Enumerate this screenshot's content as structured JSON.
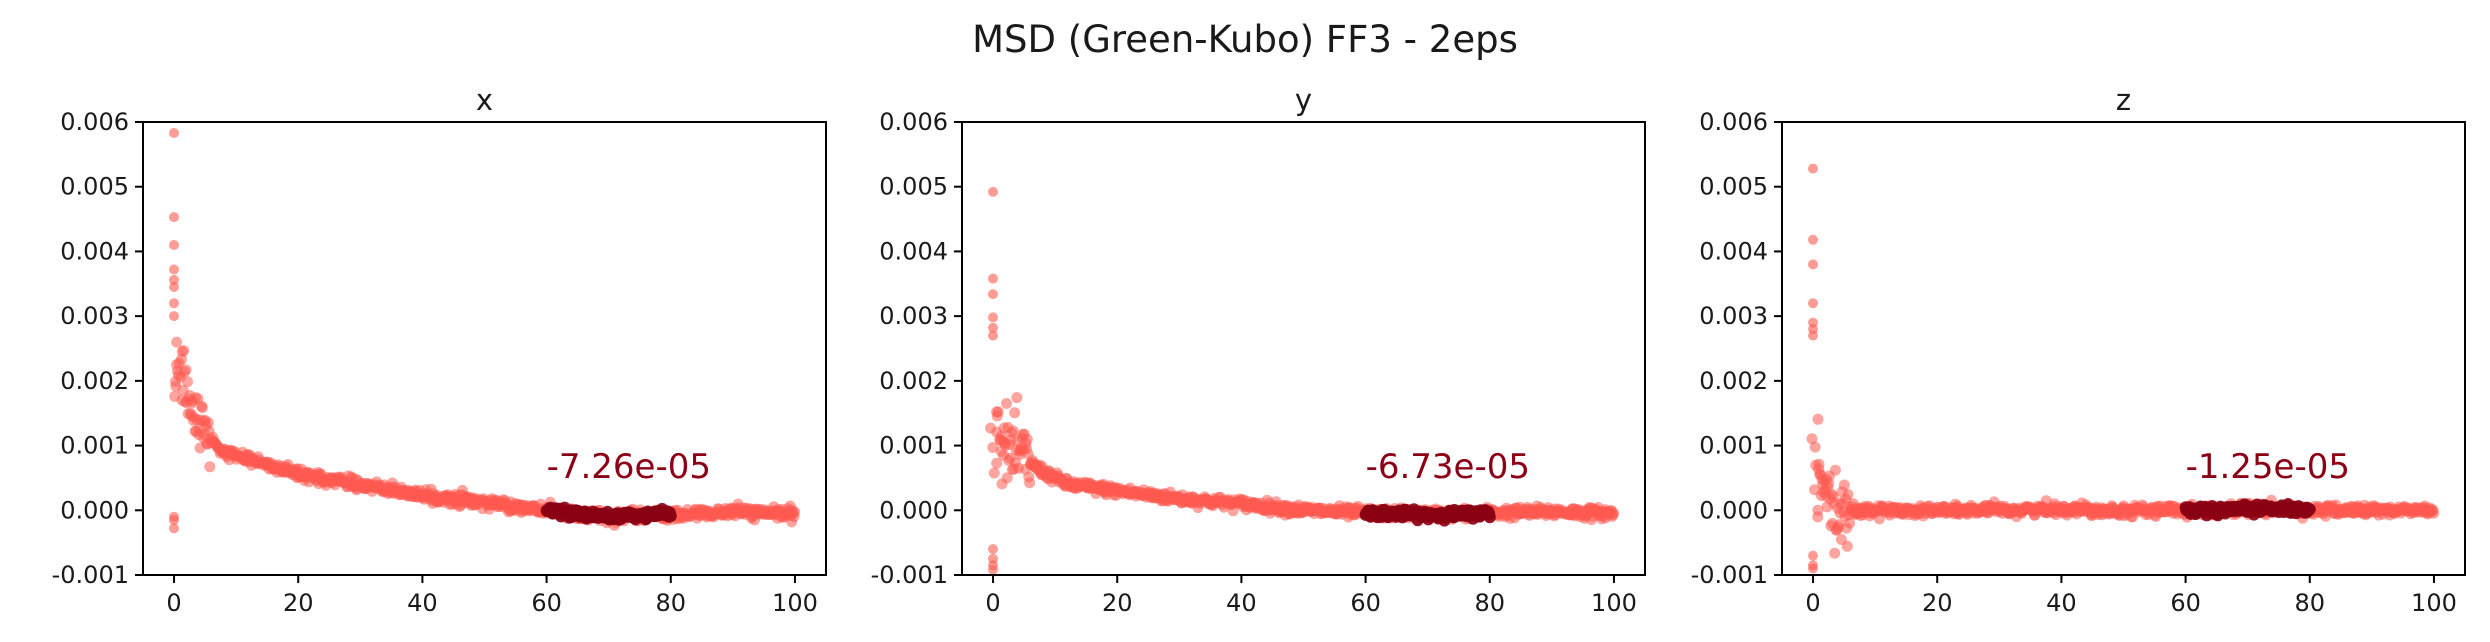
{
  "figure": {
    "title": "MSD (Green-Kubo) FF3 - 2eps"
  },
  "colors": {
    "noise": "#ff5a50",
    "fit": "#8b0014",
    "annotation": "#8b0014"
  },
  "chart_data": [
    {
      "type": "scatter",
      "title": "x",
      "xlabel": "",
      "ylabel": "",
      "xlim": [
        -5,
        105
      ],
      "ylim": [
        -0.001,
        0.006
      ],
      "xticks": [
        0,
        20,
        40,
        60,
        80,
        100
      ],
      "yticks": [
        -0.001,
        0.0,
        0.001,
        0.002,
        0.003,
        0.004,
        0.005,
        0.006
      ],
      "ytick_labels": [
        "-0.001",
        "0.000",
        "0.001",
        "0.002",
        "0.003",
        "0.004",
        "0.005",
        "0.006"
      ],
      "fit_range": [
        60,
        80
      ],
      "annotation": {
        "text": "-7.26e-05",
        "x": 60,
        "y": 0.0005
      },
      "series": [
        {
          "role": "data",
          "color": "#ff5a50",
          "trend": [
            [
              0,
              0.0019
            ],
            [
              1,
              0.0022
            ],
            [
              2,
              0.0021
            ],
            [
              3,
              0.0017
            ],
            [
              5,
              0.0012
            ],
            [
              8,
              0.0009
            ],
            [
              12,
              0.0008
            ],
            [
              20,
              0.00055
            ],
            [
              30,
              0.0004
            ],
            [
              40,
              0.00022
            ],
            [
              50,
              0.00012
            ],
            [
              60,
              0.0
            ],
            [
              70,
              -0.0001
            ],
            [
              80,
              -8e-05
            ],
            [
              90,
              -2e-05
            ],
            [
              100,
              -6e-05
            ]
          ],
          "outliers": [
            [
              0,
              0.00583
            ],
            [
              0,
              0.00453
            ],
            [
              0,
              0.0041
            ],
            [
              0,
              0.00372
            ],
            [
              0,
              0.00356
            ],
            [
              0,
              0.00345
            ],
            [
              0,
              0.0032
            ],
            [
              0,
              0.003
            ],
            [
              0,
              -0.00028
            ],
            [
              0,
              -0.00015
            ],
            [
              0,
              -0.0001
            ]
          ]
        },
        {
          "role": "fit",
          "color": "#8b0014",
          "trend": [
            [
              60,
              0.0
            ],
            [
              65,
              -5e-05
            ],
            [
              70,
              -0.0001
            ],
            [
              75,
              -8e-05
            ],
            [
              80,
              -5e-05
            ]
          ]
        }
      ]
    },
    {
      "type": "scatter",
      "title": "y",
      "xlabel": "",
      "ylabel": "",
      "xlim": [
        -5,
        105
      ],
      "ylim": [
        -0.001,
        0.006
      ],
      "xticks": [
        0,
        20,
        40,
        60,
        80,
        100
      ],
      "yticks": [
        -0.001,
        0.0,
        0.001,
        0.002,
        0.003,
        0.004,
        0.005,
        0.006
      ],
      "ytick_labels": [
        "-0.001",
        "0.000",
        "0.001",
        "0.002",
        "0.003",
        "0.004",
        "0.005",
        "0.006"
      ],
      "fit_range": [
        60,
        80
      ],
      "annotation": {
        "text": "-6.73e-05",
        "x": 60,
        "y": 0.0005
      },
      "series": [
        {
          "role": "data",
          "color": "#ff5a50",
          "trend": [
            [
              0,
              0.0013
            ],
            [
              1,
              0.0011
            ],
            [
              2,
              0.001
            ],
            [
              3,
              0.0009
            ],
            [
              5,
              0.0008
            ],
            [
              8,
              0.0006
            ],
            [
              12,
              0.0004
            ],
            [
              20,
              0.0003
            ],
            [
              30,
              0.00018
            ],
            [
              40,
              0.0001
            ],
            [
              50,
              0.0
            ],
            [
              60,
              -4e-05
            ],
            [
              70,
              -6e-05
            ],
            [
              80,
              -4e-05
            ],
            [
              90,
              -2e-05
            ],
            [
              100,
              -5e-05
            ]
          ],
          "outliers": [
            [
              0,
              0.00492
            ],
            [
              0,
              0.00358
            ],
            [
              0,
              0.00334
            ],
            [
              0,
              0.00298
            ],
            [
              0,
              0.00282
            ],
            [
              0,
              0.0027
            ],
            [
              0,
              -0.00085
            ],
            [
              0,
              -0.00092
            ],
            [
              0,
              -0.00075
            ],
            [
              0,
              -0.0006
            ]
          ]
        },
        {
          "role": "fit",
          "color": "#8b0014",
          "trend": [
            [
              60,
              -4e-05
            ],
            [
              65,
              -5e-05
            ],
            [
              70,
              -7e-05
            ],
            [
              75,
              -6e-05
            ],
            [
              80,
              -4e-05
            ]
          ]
        }
      ]
    },
    {
      "type": "scatter",
      "title": "z",
      "xlabel": "",
      "ylabel": "",
      "xlim": [
        -5,
        105
      ],
      "ylim": [
        -0.001,
        0.006
      ],
      "xticks": [
        0,
        20,
        40,
        60,
        80,
        100
      ],
      "yticks": [
        -0.001,
        0.0,
        0.001,
        0.002,
        0.003,
        0.004,
        0.005,
        0.006
      ],
      "ytick_labels": [
        "-0.001",
        "0.000",
        "0.001",
        "0.002",
        "0.003",
        "0.004",
        "0.005",
        "0.006"
      ],
      "fit_range": [
        60,
        80
      ],
      "annotation": {
        "text": "-1.25e-05",
        "x": 60,
        "y": 0.0005
      },
      "series": [
        {
          "role": "data",
          "color": "#ff5a50",
          "trend": [
            [
              0,
              0.0012
            ],
            [
              1,
              0.0005
            ],
            [
              2,
              0.0001
            ],
            [
              3,
              -0.0001
            ],
            [
              5,
              0.0
            ],
            [
              10,
              0.0
            ],
            [
              20,
              0.0
            ],
            [
              30,
              0.0
            ],
            [
              40,
              2e-05
            ],
            [
              50,
              0.0
            ],
            [
              60,
              0.0
            ],
            [
              70,
              3e-05
            ],
            [
              80,
              0.0
            ],
            [
              90,
              0.0
            ],
            [
              100,
              0.0
            ]
          ],
          "outliers": [
            [
              0,
              0.00528
            ],
            [
              0,
              0.00418
            ],
            [
              0,
              0.0038
            ],
            [
              0,
              0.0032
            ],
            [
              0,
              0.0029
            ],
            [
              0,
              0.0028
            ],
            [
              0,
              0.0027
            ],
            [
              0,
              -0.00085
            ],
            [
              0,
              -0.0009
            ],
            [
              0,
              -0.0007
            ]
          ]
        },
        {
          "role": "fit",
          "color": "#8b0014",
          "trend": [
            [
              60,
              0.0
            ],
            [
              65,
              -2e-05
            ],
            [
              70,
              2e-05
            ],
            [
              75,
              4e-05
            ],
            [
              80,
              0.0
            ]
          ]
        }
      ]
    }
  ]
}
